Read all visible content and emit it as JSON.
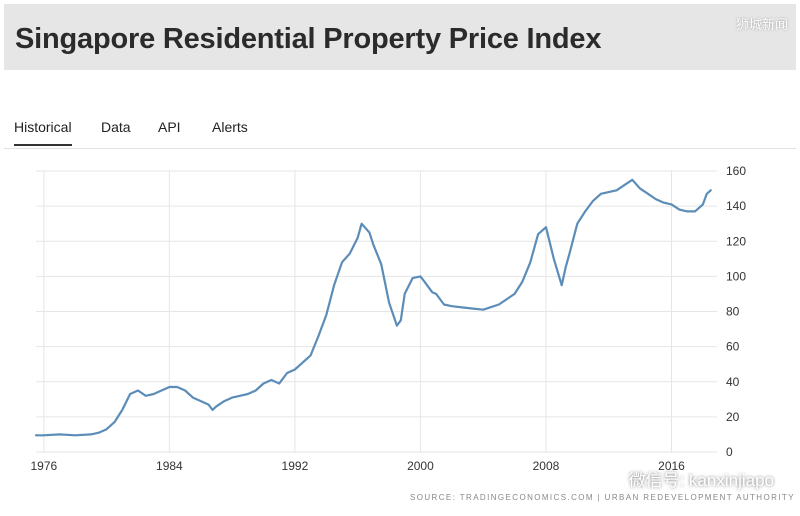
{
  "header": {
    "title": "Singapore Residential Property Price Index",
    "watermark": "狮城新闻"
  },
  "tabs": [
    {
      "label": "Historical",
      "active": true
    },
    {
      "label": "Data",
      "active": false
    },
    {
      "label": "API",
      "active": false
    },
    {
      "label": "Alerts",
      "active": false
    }
  ],
  "footer": {
    "source": "SOURCE: TRADINGECONOMICS.COM | URBAN REDEVELOPMENT AUTHORITY",
    "watermark": "微信号: kanxinjiapo",
    "watermark_icon": "wechat-icon"
  },
  "colors": {
    "line": "#5b8db8",
    "grid": "#e6e6e6",
    "axis_text": "#333333",
    "header_bg": "#e6e6e6"
  },
  "chart_data": {
    "type": "line",
    "title": "Singapore Residential Property Price Index",
    "xlabel": "",
    "ylabel": "",
    "x_ticks": [
      "1976",
      "1984",
      "1992",
      "2000",
      "2008",
      "2016"
    ],
    "y_ticks": [
      0,
      20,
      40,
      60,
      80,
      100,
      120,
      140,
      160
    ],
    "xlim": [
      1975.5,
      2018.9
    ],
    "ylim": [
      0,
      160
    ],
    "grid": true,
    "y_axis_position": "right",
    "series": [
      {
        "x": [
          1975.5,
          1976.0,
          1977.0,
          1978.0,
          1979.0,
          1979.5,
          1980.0,
          1980.5,
          1981.0,
          1981.5,
          1982.0,
          1982.5,
          1983.0,
          1983.5,
          1984.0,
          1984.5,
          1985.0,
          1985.5,
          1986.0,
          1986.5,
          1986.75,
          1987.0,
          1987.5,
          1988.0,
          1988.5,
          1989.0,
          1989.5,
          1990.0,
          1990.5,
          1991.0,
          1991.5,
          1992.0,
          1992.5,
          1993.0,
          1993.5,
          1994.0,
          1994.5,
          1995.0,
          1995.5,
          1996.0,
          1996.25,
          1996.75,
          1997.0,
          1997.5,
          1998.0,
          1998.5,
          1998.75,
          1999.0,
          1999.5,
          2000.0,
          2000.25,
          2000.75,
          2001.0,
          2001.5,
          2002.0,
          2003.0,
          2004.0,
          2005.0,
          2006.0,
          2006.5,
          2007.0,
          2007.5,
          2008.0,
          2008.5,
          2009.0,
          2009.25,
          2009.5,
          2010.0,
          2010.5,
          2011.0,
          2011.5,
          2012.0,
          2012.5,
          2013.0,
          2013.5,
          2014.0,
          2014.5,
          2015.0,
          2015.5,
          2016.0,
          2016.5,
          2017.0,
          2017.5,
          2018.0,
          2018.25,
          2018.5
        ],
        "values": [
          9.5,
          9.5,
          10,
          9.5,
          10,
          11,
          13,
          17,
          24,
          33,
          35,
          32,
          33,
          35,
          37,
          37,
          35,
          31,
          29,
          27,
          24,
          26,
          29,
          31,
          32,
          33,
          35,
          39,
          41,
          39,
          45,
          47,
          51,
          55,
          66,
          78,
          95,
          108,
          113,
          122,
          130,
          125,
          118,
          107,
          85,
          72,
          75,
          90,
          99,
          100,
          97,
          91,
          90,
          84,
          83,
          82,
          81,
          84,
          90,
          97,
          108,
          124,
          128,
          110,
          95,
          105,
          113,
          130,
          137,
          143,
          147,
          148,
          149,
          152,
          155,
          150,
          147,
          144,
          142,
          141,
          138,
          137,
          137,
          141,
          147,
          149
        ]
      }
    ]
  }
}
